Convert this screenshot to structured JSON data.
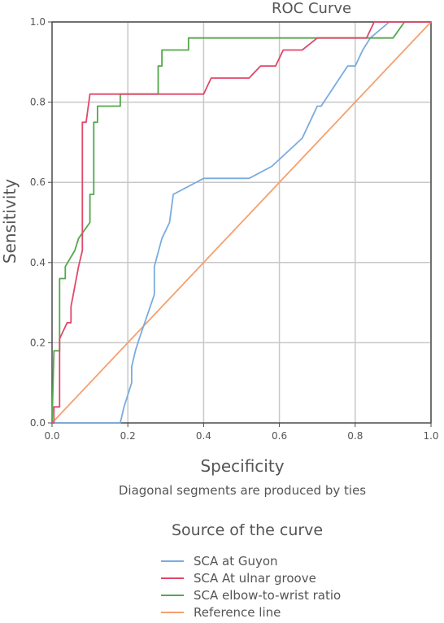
{
  "chart_data": {
    "type": "line",
    "title": "ROC Curve",
    "xlabel": "Specificity",
    "ylabel": "Sensitivity",
    "note": "Diagonal segments are produced by ties",
    "legend_title": "Source of the curve",
    "legend_placement": "bottom",
    "grid": true,
    "xlim": [
      0,
      1
    ],
    "ylim": [
      0,
      1
    ],
    "x_ticks": [
      "0.0",
      "0.2",
      "0.4",
      "0.6",
      "0.8",
      "1.0"
    ],
    "y_ticks": [
      "0.0",
      "0.2",
      "0.4",
      "0.6",
      "0.8",
      "1.0"
    ],
    "series": [
      {
        "name": "SCA at Guyon",
        "color": "#7aabdf",
        "x": [
          0,
          0.18,
          0.19,
          0.2,
          0.21,
          0.21,
          0.22,
          0.23,
          0.27,
          0.27,
          0.29,
          0.31,
          0.32,
          0.4,
          0.52,
          0.58,
          0.66,
          0.7,
          0.71,
          0.78,
          0.8,
          0.82,
          0.84,
          0.89,
          1.0
        ],
        "y": [
          0,
          0,
          0.04,
          0.07,
          0.1,
          0.14,
          0.18,
          0.21,
          0.32,
          0.39,
          0.46,
          0.5,
          0.57,
          0.61,
          0.61,
          0.64,
          0.71,
          0.79,
          0.79,
          0.89,
          0.89,
          0.93,
          0.96,
          1.0,
          1.0
        ]
      },
      {
        "name": "SCA At ulnar groove",
        "color": "#e0476a",
        "x": [
          0,
          0.005,
          0.005,
          0.02,
          0.02,
          0.04,
          0.05,
          0.05,
          0.07,
          0.07,
          0.08,
          0.08,
          0.09,
          0.1,
          0.1,
          0.4,
          0.42,
          0.52,
          0.55,
          0.59,
          0.61,
          0.63,
          0.66,
          0.7,
          0.83,
          0.85,
          1.0
        ],
        "y": [
          0,
          0,
          0.04,
          0.04,
          0.21,
          0.25,
          0.25,
          0.29,
          0.39,
          0.39,
          0.43,
          0.75,
          0.75,
          0.82,
          0.82,
          0.82,
          0.86,
          0.86,
          0.89,
          0.89,
          0.93,
          0.93,
          0.93,
          0.96,
          0.96,
          1.0,
          1.0
        ]
      },
      {
        "name": "SCA elbow-to-wrist ratio",
        "color": "#53a84c",
        "x": [
          0,
          0.005,
          0.005,
          0.02,
          0.02,
          0.035,
          0.035,
          0.06,
          0.07,
          0.07,
          0.1,
          0.1,
          0.11,
          0.11,
          0.12,
          0.12,
          0.18,
          0.18,
          0.28,
          0.28,
          0.29,
          0.29,
          0.36,
          0.36,
          0.9,
          0.93,
          1.0
        ],
        "y": [
          0,
          0.18,
          0.18,
          0.18,
          0.36,
          0.36,
          0.39,
          0.43,
          0.46,
          0.46,
          0.5,
          0.57,
          0.57,
          0.75,
          0.75,
          0.79,
          0.79,
          0.82,
          0.82,
          0.89,
          0.89,
          0.93,
          0.93,
          0.96,
          0.96,
          1.0,
          1.0
        ]
      },
      {
        "name": "Reference line",
        "color": "#f5a06e",
        "x": [
          0,
          1
        ],
        "y": [
          0,
          1
        ]
      }
    ]
  }
}
